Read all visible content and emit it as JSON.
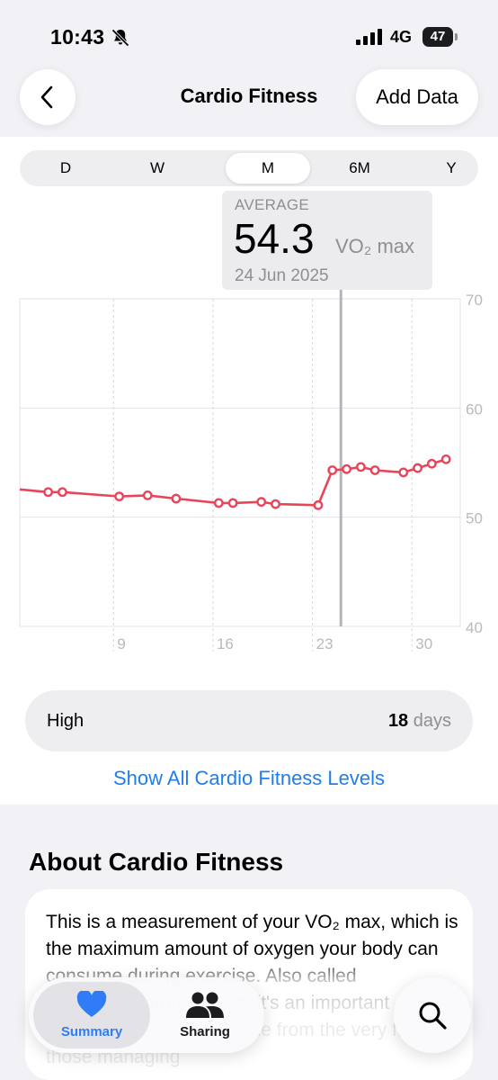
{
  "status_bar": {
    "time": "10:43",
    "network": "4G",
    "battery": "47"
  },
  "nav": {
    "title": "Cardio Fitness",
    "add_data": "Add Data"
  },
  "segments": [
    "D",
    "W",
    "M",
    "6M",
    "Y"
  ],
  "selected_segment": "M",
  "callout": {
    "label": "AVERAGE",
    "value": "54.3",
    "unit": "VO₂ max",
    "date": "24 Jun 2025"
  },
  "chart_data": {
    "type": "line",
    "x_unit": "day",
    "xlim": [
      1.4,
      32.4
    ],
    "ylim": [
      40,
      70
    ],
    "y_ticks": [
      "70",
      "60",
      "50",
      "40"
    ],
    "x_ticks": [
      "9",
      "16",
      "23",
      "30"
    ],
    "selected_x": 24,
    "color": "#e8445a",
    "series": [
      {
        "x": [
          3.4,
          4.4,
          8.4,
          10.4,
          12.4,
          15.4,
          16.4,
          18.4,
          19.4,
          22.4,
          23.4,
          24.4,
          25.4,
          26.4,
          28.4,
          29.4,
          30.4,
          31.4
        ],
        "y": [
          52.3,
          52.3,
          51.9,
          52.0,
          51.7,
          51.3,
          51.3,
          51.4,
          51.2,
          51.1,
          54.3,
          54.4,
          54.6,
          54.3,
          54.1,
          54.5,
          54.9,
          55.3
        ]
      }
    ]
  },
  "high_row": {
    "label": "High",
    "value": "18",
    "unit": "days"
  },
  "show_all_link": "Show All Cardio Fitness Levels",
  "about": {
    "title": "About Cardio Fitness",
    "text": "This is a measurement of your VO₂ max, which is the maximum amount of oxygen your body can consume during exercise. Also called cardiorespiratory fitness, it's an important measurement for everyone from the very fit to those managing"
  },
  "tab_bar": {
    "summary": "Summary",
    "sharing": "Sharing",
    "accent": "#2f7cf6"
  }
}
